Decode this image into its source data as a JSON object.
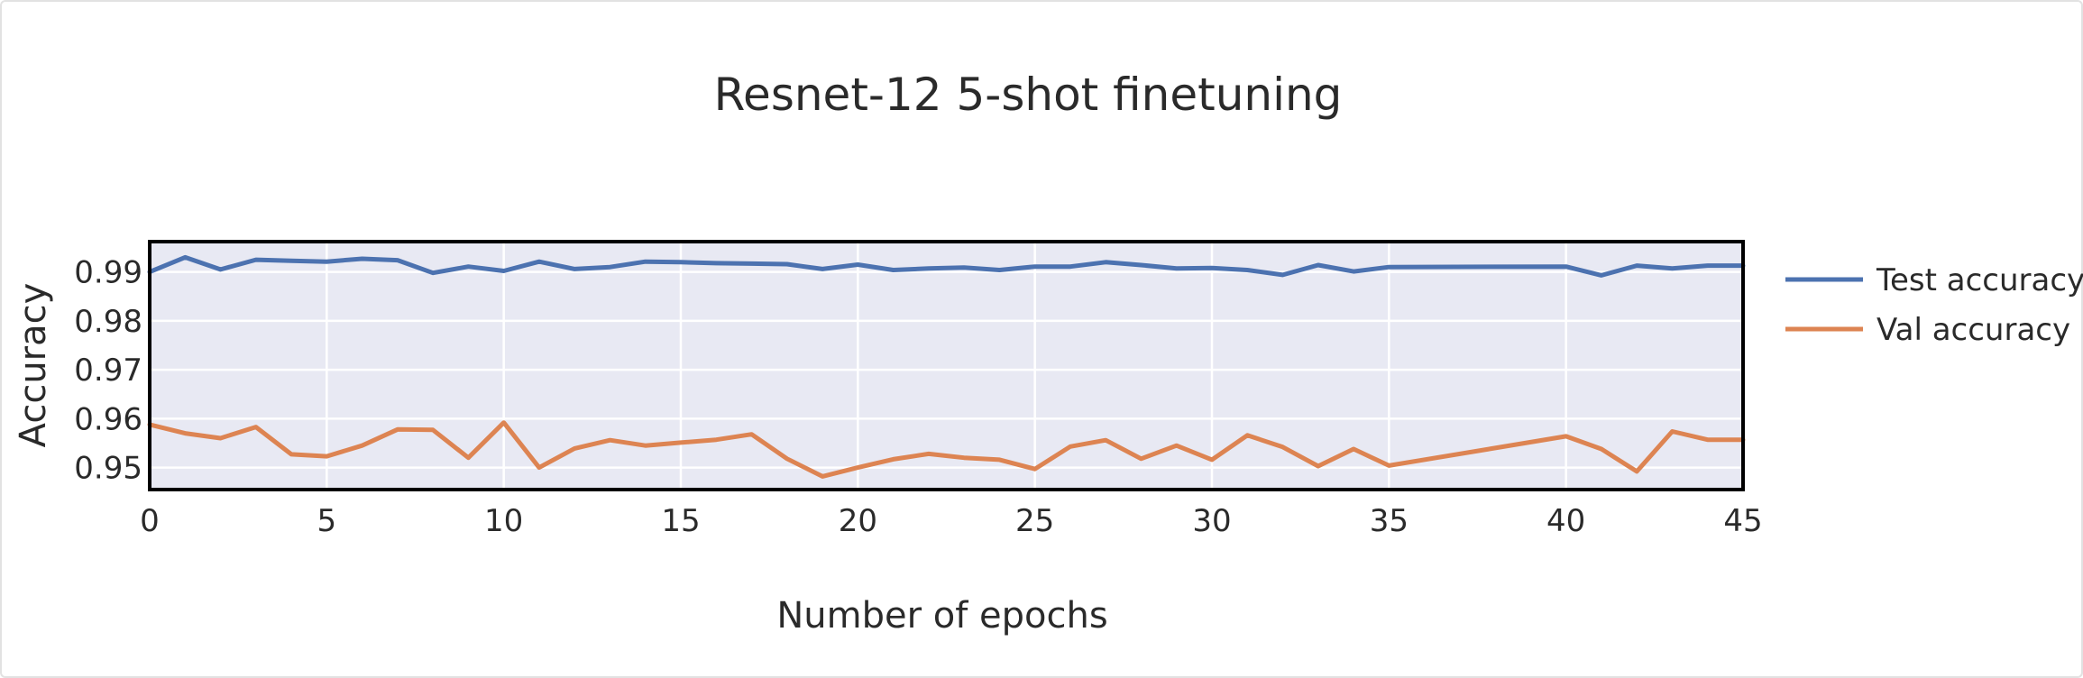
{
  "chart_data": {
    "type": "line",
    "title": "Resnet-12 5-shot finetuning",
    "xlabel": "Number of epochs",
    "ylabel": "Accuracy",
    "xlim": [
      0,
      45
    ],
    "ylim": [
      0.9455,
      0.9962
    ],
    "grid": true,
    "legend_position": "right",
    "plot_background": "#e8e9f3",
    "x_ticks": [
      0,
      5,
      10,
      15,
      20,
      25,
      30,
      35,
      40,
      45
    ],
    "x_tick_labels": [
      "0",
      "5",
      "10",
      "15",
      "20",
      "25",
      "30",
      "35",
      "40",
      "45"
    ],
    "y_ticks": [
      0.95,
      0.96,
      0.97,
      0.98,
      0.99
    ],
    "y_tick_labels": [
      "0.95",
      "0.96",
      "0.97",
      "0.98",
      "0.99"
    ],
    "x": [
      0,
      1,
      2,
      3,
      4,
      5,
      6,
      7,
      8,
      9,
      10,
      11,
      12,
      13,
      14,
      15,
      16,
      17,
      18,
      19,
      20,
      21,
      22,
      23,
      24,
      25,
      26,
      27,
      28,
      29,
      30,
      31,
      32,
      33,
      34,
      35,
      40,
      41,
      42,
      43,
      44,
      45
    ],
    "series": [
      {
        "name": "Test accuracy",
        "color": "#4c72b0",
        "values": [
          0.99,
          0.993,
          0.9905,
          0.9925,
          0.9923,
          0.9921,
          0.9927,
          0.9924,
          0.9898,
          0.9911,
          0.9902,
          0.9921,
          0.9906,
          0.991,
          0.9921,
          0.992,
          0.9918,
          0.9917,
          0.9916,
          0.9906,
          0.9915,
          0.9904,
          0.9907,
          0.9909,
          0.9904,
          0.9911,
          0.9911,
          0.992,
          0.9914,
          0.9907,
          0.9908,
          0.9904,
          0.9894,
          0.9914,
          0.9901,
          0.991,
          0.9911,
          0.9893,
          0.9913,
          0.9907,
          0.9913,
          0.9913
        ]
      },
      {
        "name": "Val accuracy",
        "color": "#dd8452",
        "values": [
          0.9588,
          0.957,
          0.956,
          0.9583,
          0.9527,
          0.9523,
          0.9545,
          0.9578,
          0.9577,
          0.952,
          0.9592,
          0.95,
          0.9539,
          0.9556,
          0.9545,
          0.9551,
          0.9557,
          0.9568,
          0.9518,
          0.9482,
          0.95,
          0.9517,
          0.9528,
          0.952,
          0.9516,
          0.9497,
          0.9543,
          0.9556,
          0.9518,
          0.9545,
          0.9516,
          0.9566,
          0.9542,
          0.9503,
          0.9538,
          0.9504,
          0.9564,
          0.9538,
          0.9492,
          0.9574,
          0.9557,
          0.9557
        ]
      }
    ]
  }
}
